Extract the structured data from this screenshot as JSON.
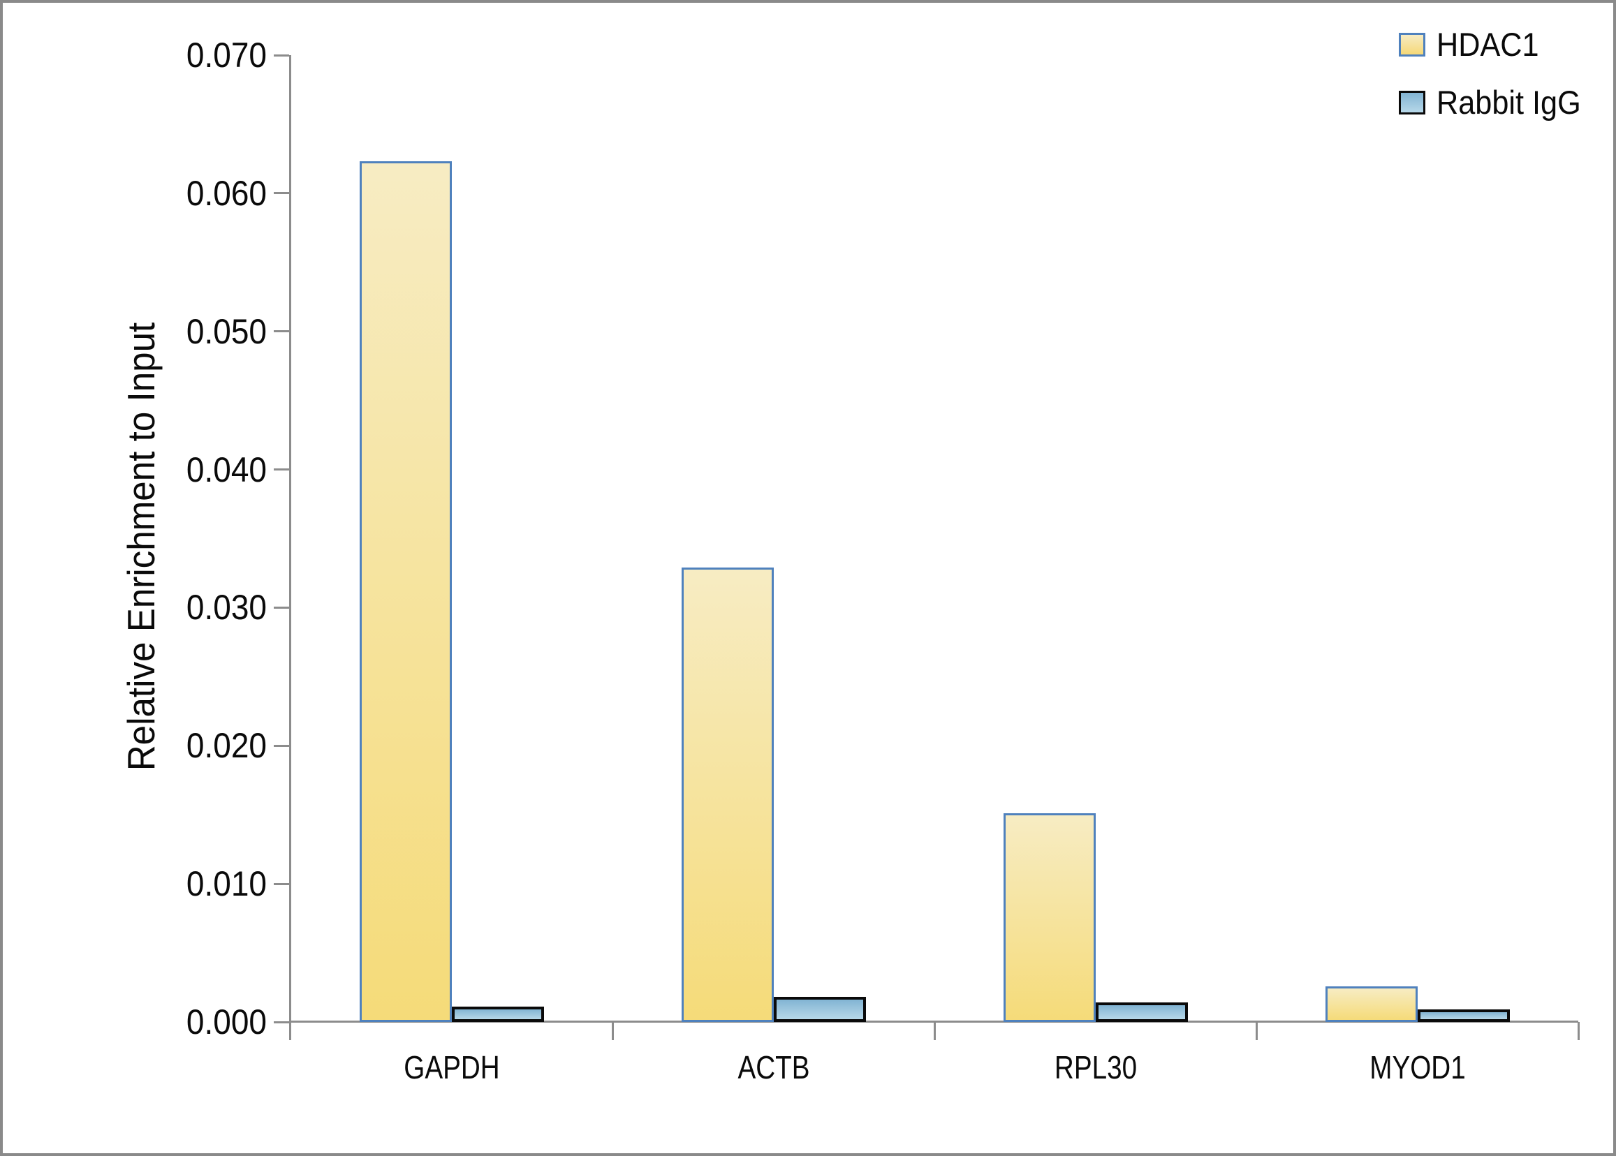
{
  "chart_data": {
    "type": "bar",
    "title": "",
    "xlabel": "",
    "ylabel": "Relative Enrichment to Input",
    "categories": [
      "GAPDH",
      "ACTB",
      "RPL30",
      "MYOD1"
    ],
    "series": [
      {
        "name": "HDAC1",
        "values": [
          0.0623,
          0.0329,
          0.0151,
          0.0026
        ],
        "fill_top": "#f7ecc3",
        "fill_bottom": "#f5db79",
        "border_color": "#4f81bd"
      },
      {
        "name": "Rabbit IgG",
        "values": [
          0.0011,
          0.0018,
          0.0014,
          0.0009
        ],
        "fill_top": "#82b4d3",
        "fill_bottom": "#b7d8e9",
        "border_color": "#0a0a0a"
      }
    ],
    "ylim": [
      0,
      0.07
    ],
    "ytick_labels": [
      "0.000",
      "0.010",
      "0.020",
      "0.030",
      "0.040",
      "0.050",
      "0.060",
      "0.070"
    ],
    "grid": false,
    "legend_position": "top-right",
    "axis_color": "#8c8c8c",
    "background_color": "#ffffff",
    "frame_color": "#8a8a8a"
  }
}
